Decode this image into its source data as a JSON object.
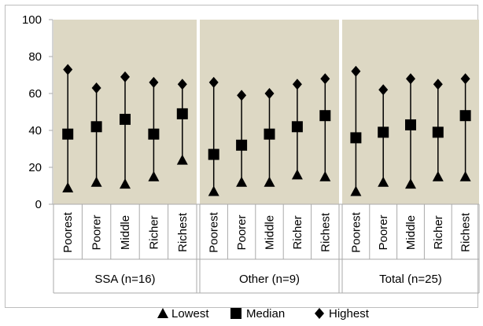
{
  "chart_data": {
    "type": "scatter",
    "title": "",
    "xlabel": "",
    "ylabel": "",
    "ylim": [
      0,
      100
    ],
    "yticks": [
      0,
      20,
      40,
      60,
      80,
      100
    ],
    "grid": false,
    "legend_position": "bottom",
    "colors": {
      "plot_bg": "#ddd8c4",
      "marker": "#000000",
      "border": "#aaaaaa"
    },
    "groups": [
      {
        "label": "SSA (n=16)",
        "categories": [
          "Poorest",
          "Poorer",
          "Middle",
          "Richer",
          "Richest"
        ]
      },
      {
        "label": "Other (n=9)",
        "categories": [
          "Poorest",
          "Poorer",
          "Middle",
          "Richer",
          "Richest"
        ]
      },
      {
        "label": "Total (n=25)",
        "categories": [
          "Poorest",
          "Poorer",
          "Middle",
          "Richer",
          "Richest"
        ]
      }
    ],
    "series": [
      {
        "name": "Lowest",
        "marker": "triangle",
        "values": [
          [
            9,
            12,
            11,
            15,
            24
          ],
          [
            7,
            12,
            12,
            16,
            15
          ],
          [
            7,
            12,
            11,
            15,
            15
          ]
        ]
      },
      {
        "name": "Median",
        "marker": "square",
        "values": [
          [
            38,
            42,
            46,
            38,
            49
          ],
          [
            27,
            32,
            38,
            42,
            48
          ],
          [
            36,
            39,
            43,
            39,
            48
          ]
        ]
      },
      {
        "name": "Highest",
        "marker": "diamond",
        "values": [
          [
            73,
            63,
            69,
            66,
            65
          ],
          [
            66,
            59,
            60,
            65,
            68
          ],
          [
            72,
            62,
            68,
            65,
            68
          ]
        ]
      }
    ]
  }
}
